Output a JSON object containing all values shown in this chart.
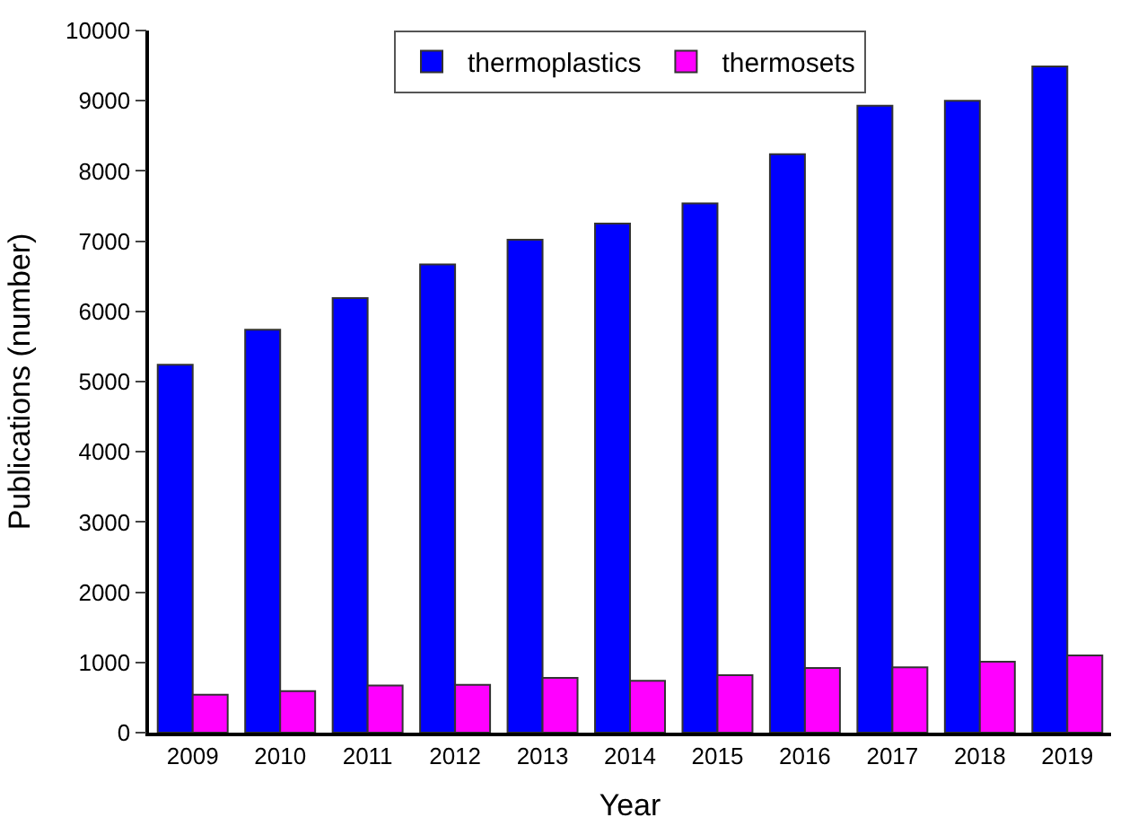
{
  "chart_data": {
    "type": "bar",
    "xlabel": "Year",
    "ylabel": "Publications (number)",
    "categories": [
      "2009",
      "2010",
      "2011",
      "2012",
      "2013",
      "2014",
      "2015",
      "2016",
      "2017",
      "2018",
      "2019"
    ],
    "series": [
      {
        "name": "thermoplastics",
        "color": "#0000ff",
        "values": [
          5240,
          5740,
          6190,
          6670,
          7020,
          7250,
          7540,
          8240,
          8930,
          9000,
          9490
        ]
      },
      {
        "name": "thermosets",
        "color": "#ff00ff",
        "values": [
          540,
          590,
          670,
          680,
          780,
          740,
          820,
          920,
          930,
          1010,
          1100
        ]
      }
    ],
    "ylim": [
      0,
      10000
    ],
    "yticks": [
      0,
      1000,
      2000,
      3000,
      4000,
      5000,
      6000,
      7000,
      8000,
      9000,
      10000
    ],
    "legend": "top"
  }
}
